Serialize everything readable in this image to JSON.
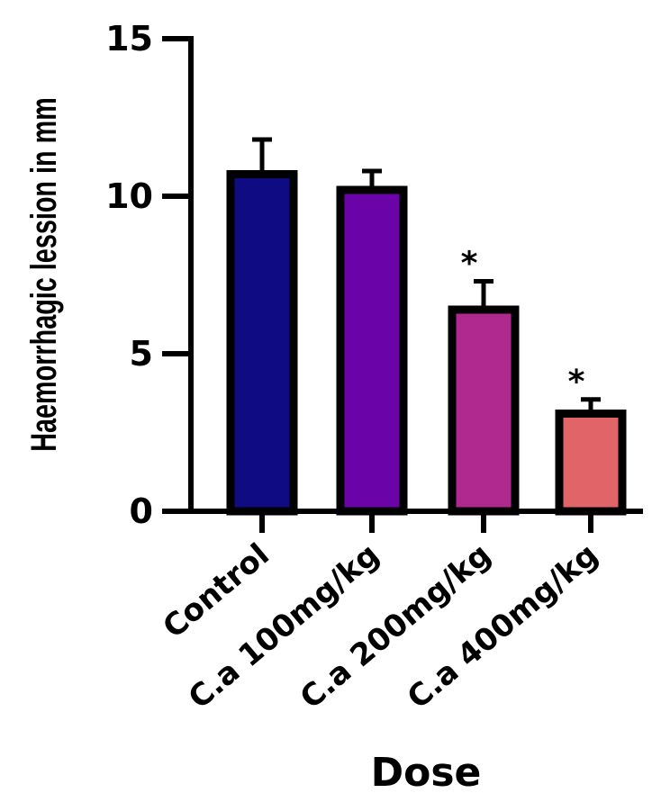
{
  "chart_data": {
    "type": "bar",
    "title": "",
    "xlabel": "Dose",
    "ylabel": "Haemorrhagic lession in mm",
    "ylim": [
      0,
      15
    ],
    "yticks": [
      0,
      5,
      10,
      15
    ],
    "grid": false,
    "categories": [
      "Control",
      "C.a 100mg/kg",
      "C.a  200mg/kg",
      "C.a 400mg/kg"
    ],
    "values": [
      10.7,
      10.2,
      6.4,
      3.1
    ],
    "errors": [
      1.1,
      0.6,
      0.9,
      0.45
    ],
    "annotations": [
      "",
      "",
      "*",
      "*"
    ],
    "colors": [
      "#0f0c83",
      "#6a04a8",
      "#b0298e",
      "#e06468"
    ]
  }
}
